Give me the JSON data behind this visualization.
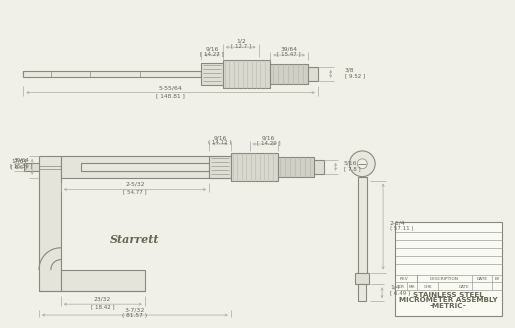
{
  "bg_color": "#f0efe8",
  "line_color": "#aaaaaa",
  "dark_line": "#666655",
  "draw_color": "#888880",
  "title_lines": [
    "STAINLESS STEEL",
    "MICROMETER ASSEMBLY",
    "-METRIC-"
  ],
  "brand": "Starrett",
  "top_dims": {
    "d1_frac": "9/16",
    "d1_mm": "[ 14.27 ]",
    "d2_frac": "1/2",
    "d2_mm": "[ 12.7 ]",
    "d3_frac": "39/64",
    "d3_mm": "[ 15.47 ]",
    "d4_frac": "3/8",
    "d4_mm": "[ 9.52 ]",
    "total_frac": "5-55/64",
    "total_mm": "[ 148.81 ]"
  },
  "bot_dims": {
    "height_frac": "39/64",
    "height_mm": "[ 15.39 ]",
    "anvil_frac": "17/64",
    "anvil_mm": "[ 6.6 ]",
    "span_frac": "2-5/32",
    "span_mm": "[ 54.77 ]",
    "bottom_frac": "3-7/32",
    "bottom_mm": "( 81.57 )",
    "d1_frac": "9/16",
    "d1_mm": "( 14.12 )",
    "d2_frac": "9/16",
    "d2_mm": "[ 14.29 ]",
    "d3_frac": "5/16",
    "d3_mm": "[ 7.8 ]",
    "base_frac": "23/32",
    "base_mm": "[ 18.42 ]",
    "length_frac": "2-1/4",
    "length_mm": "( 57.11 )",
    "end_frac": "1/4",
    "end_mm": "[ 6.49 ]"
  }
}
